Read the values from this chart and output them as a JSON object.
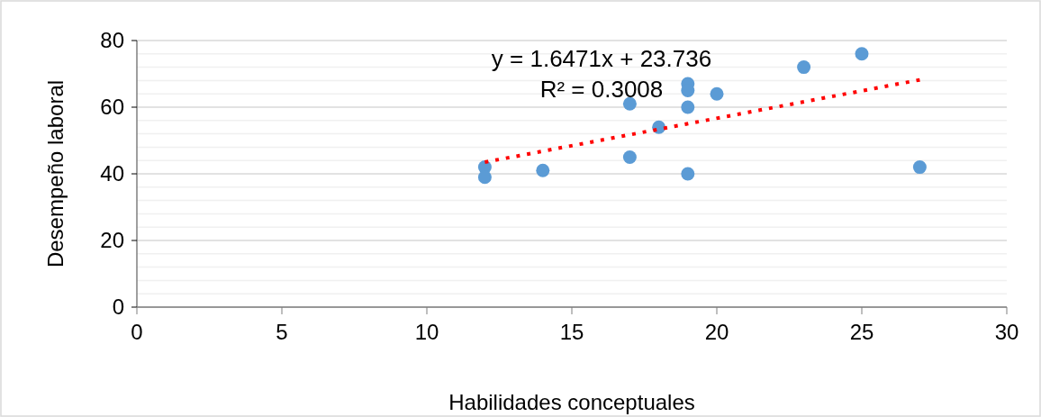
{
  "chart_data": {
    "type": "scatter",
    "xlabel": "Habilidades conceptuales",
    "ylabel": "Desempeño laboral",
    "xlim": [
      0,
      30
    ],
    "xticks": [
      0,
      5,
      10,
      15,
      20,
      25,
      30
    ],
    "ylim": [
      0,
      80
    ],
    "yticks": [
      0,
      20,
      40,
      60,
      80
    ],
    "grid": "y",
    "series": [
      {
        "marker": "circle",
        "color": "#5b9bd5",
        "x": [
          12,
          12,
          14,
          17,
          17,
          18,
          19,
          19,
          19,
          19,
          20,
          23,
          25,
          27
        ],
        "values": [
          42,
          39,
          41,
          61,
          45,
          54,
          67,
          65,
          60,
          40,
          64,
          72,
          76,
          42
        ]
      },
      {
        "type": "line",
        "color": "#ff0000",
        "line_style": "dotted",
        "x": [
          12,
          27
        ],
        "values": [
          43.5,
          68.2
        ]
      }
    ],
    "annotations": [
      "y = 1.6471x + 23.736",
      "R² = 0.3008"
    ]
  }
}
